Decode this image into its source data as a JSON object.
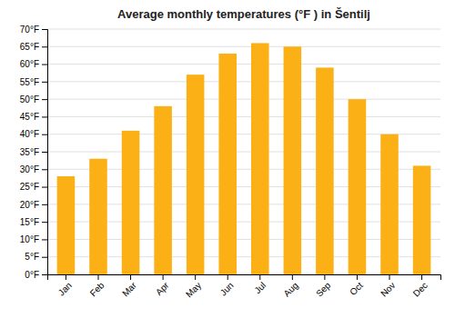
{
  "chart_data": {
    "type": "bar",
    "title": "Average monthly temperatures (°F ) in Šentilj",
    "categories": [
      "Jan",
      "Feb",
      "Mar",
      "Apr",
      "May",
      "Jun",
      "Jul",
      "Aug",
      "Sep",
      "Oct",
      "Nov",
      "Dec"
    ],
    "values": [
      28,
      33,
      41,
      48,
      57,
      63,
      66,
      65,
      59,
      50,
      40,
      31
    ],
    "color": "#FBB116",
    "ylim": [
      0,
      70
    ],
    "yticks": [
      {
        "value": 0,
        "label": "0°F"
      },
      {
        "value": 5,
        "label": "5°F"
      },
      {
        "value": 10,
        "label": "10°F"
      },
      {
        "value": 15,
        "label": "15°F"
      },
      {
        "value": 20,
        "label": "20°F"
      },
      {
        "value": 25,
        "label": "25°F"
      },
      {
        "value": 30,
        "label": "30°F"
      },
      {
        "value": 35,
        "label": "35°F"
      },
      {
        "value": 40,
        "label": "40°F"
      },
      {
        "value": 45,
        "label": "45°F"
      },
      {
        "value": 50,
        "label": "50°F"
      },
      {
        "value": 55,
        "label": "55°F"
      },
      {
        "value": 60,
        "label": "60°F"
      },
      {
        "value": 65,
        "label": "65°F"
      },
      {
        "value": 70,
        "label": "70°F"
      }
    ],
    "grid": true
  }
}
